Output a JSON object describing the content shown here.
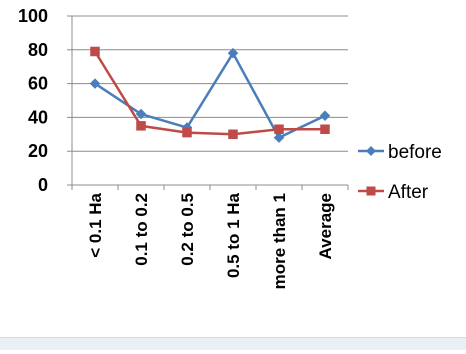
{
  "chart_data": {
    "type": "line",
    "title": "",
    "xlabel": "",
    "ylabel": "",
    "categories": [
      "< 0.1 Ha",
      "0.1 to 0.2",
      "0.2 to 0.5",
      "0.5 to 1 Ha",
      "more than 1",
      "Average"
    ],
    "ylim": [
      0,
      100
    ],
    "yticks": [
      0,
      20,
      40,
      60,
      80,
      100
    ],
    "grid": true,
    "legend_position": "right",
    "series": [
      {
        "name": "before",
        "values": [
          60,
          42,
          34,
          78,
          28,
          41
        ],
        "color": "#4a7ebb",
        "marker": "diamond"
      },
      {
        "name": "After",
        "values": [
          79,
          35,
          31,
          30,
          33,
          33
        ],
        "color": "#be4b48",
        "marker": "square"
      }
    ]
  }
}
